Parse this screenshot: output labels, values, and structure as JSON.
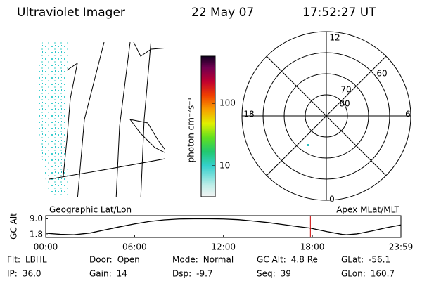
{
  "header": {
    "instrument": "Ultraviolet Imager",
    "date": "22 May 07",
    "time": "17:52:27 UT"
  },
  "colorbar": {
    "label": "photon cm⁻²s⁻¹",
    "lim": [
      3.2,
      566
    ],
    "ticks": [
      10,
      100
    ],
    "log": true
  },
  "left_label": "Geographic Lat/Lon",
  "right_label": "Apex MLat/MLT",
  "polar": {
    "mlt_labels": [
      "12",
      "18",
      "6",
      "0"
    ],
    "lat_labels": [
      "60",
      "70",
      "80"
    ]
  },
  "chart_data": {
    "type": "line",
    "ylabel": "GC Alt",
    "x": [
      0,
      1,
      1.9,
      3,
      4,
      5,
      6,
      7,
      8,
      9,
      10,
      11,
      12,
      13,
      14,
      15,
      16,
      17,
      17.87,
      19,
      20,
      20.3,
      21,
      22,
      23,
      23.98
    ],
    "series": [
      {
        "name": "GC Alt",
        "color": "#000000",
        "values": [
          2.5,
          2.0,
          1.8,
          2.6,
          4.0,
          5.4,
          6.7,
          7.8,
          8.5,
          8.9,
          9.0,
          9.0,
          8.9,
          8.6,
          8.0,
          7.3,
          6.4,
          5.5,
          4.8,
          3.2,
          2.0,
          1.8,
          2.2,
          3.5,
          5.0,
          6.2
        ]
      }
    ],
    "xlim": [
      0,
      23.98
    ],
    "xticks": [
      {
        "value": 0,
        "label": "00:00"
      },
      {
        "value": 6,
        "label": "06:00"
      },
      {
        "value": 12,
        "label": "12:00"
      },
      {
        "value": 18,
        "label": "18:00"
      },
      {
        "value": 23.98,
        "label": "23:59"
      }
    ],
    "ylim": [
      0.6,
      10.4
    ],
    "yticks": [
      1.8,
      {
        "value": 9,
        "label": "9.0"
      }
    ],
    "marker": {
      "x": 17.87,
      "color": "#cc0000"
    }
  },
  "footer": [
    {
      "label": "Flt:",
      "value": "LBHL"
    },
    {
      "label": "IP:",
      "value": "36.0"
    },
    {
      "label": "Door:",
      "value": "Open"
    },
    {
      "label": "Gain:",
      "value": "14"
    },
    {
      "label": "Mode:",
      "value": "Normal"
    },
    {
      "label": "Dsp:",
      "value": "-9.7"
    },
    {
      "label": "GC Alt:",
      "value": "4.8 Re"
    },
    {
      "label": "Seq:",
      "value": "39"
    },
    {
      "label": "GLat:",
      "value": "-56.1"
    },
    {
      "label": "GLon:",
      "value": "160.7"
    }
  ]
}
